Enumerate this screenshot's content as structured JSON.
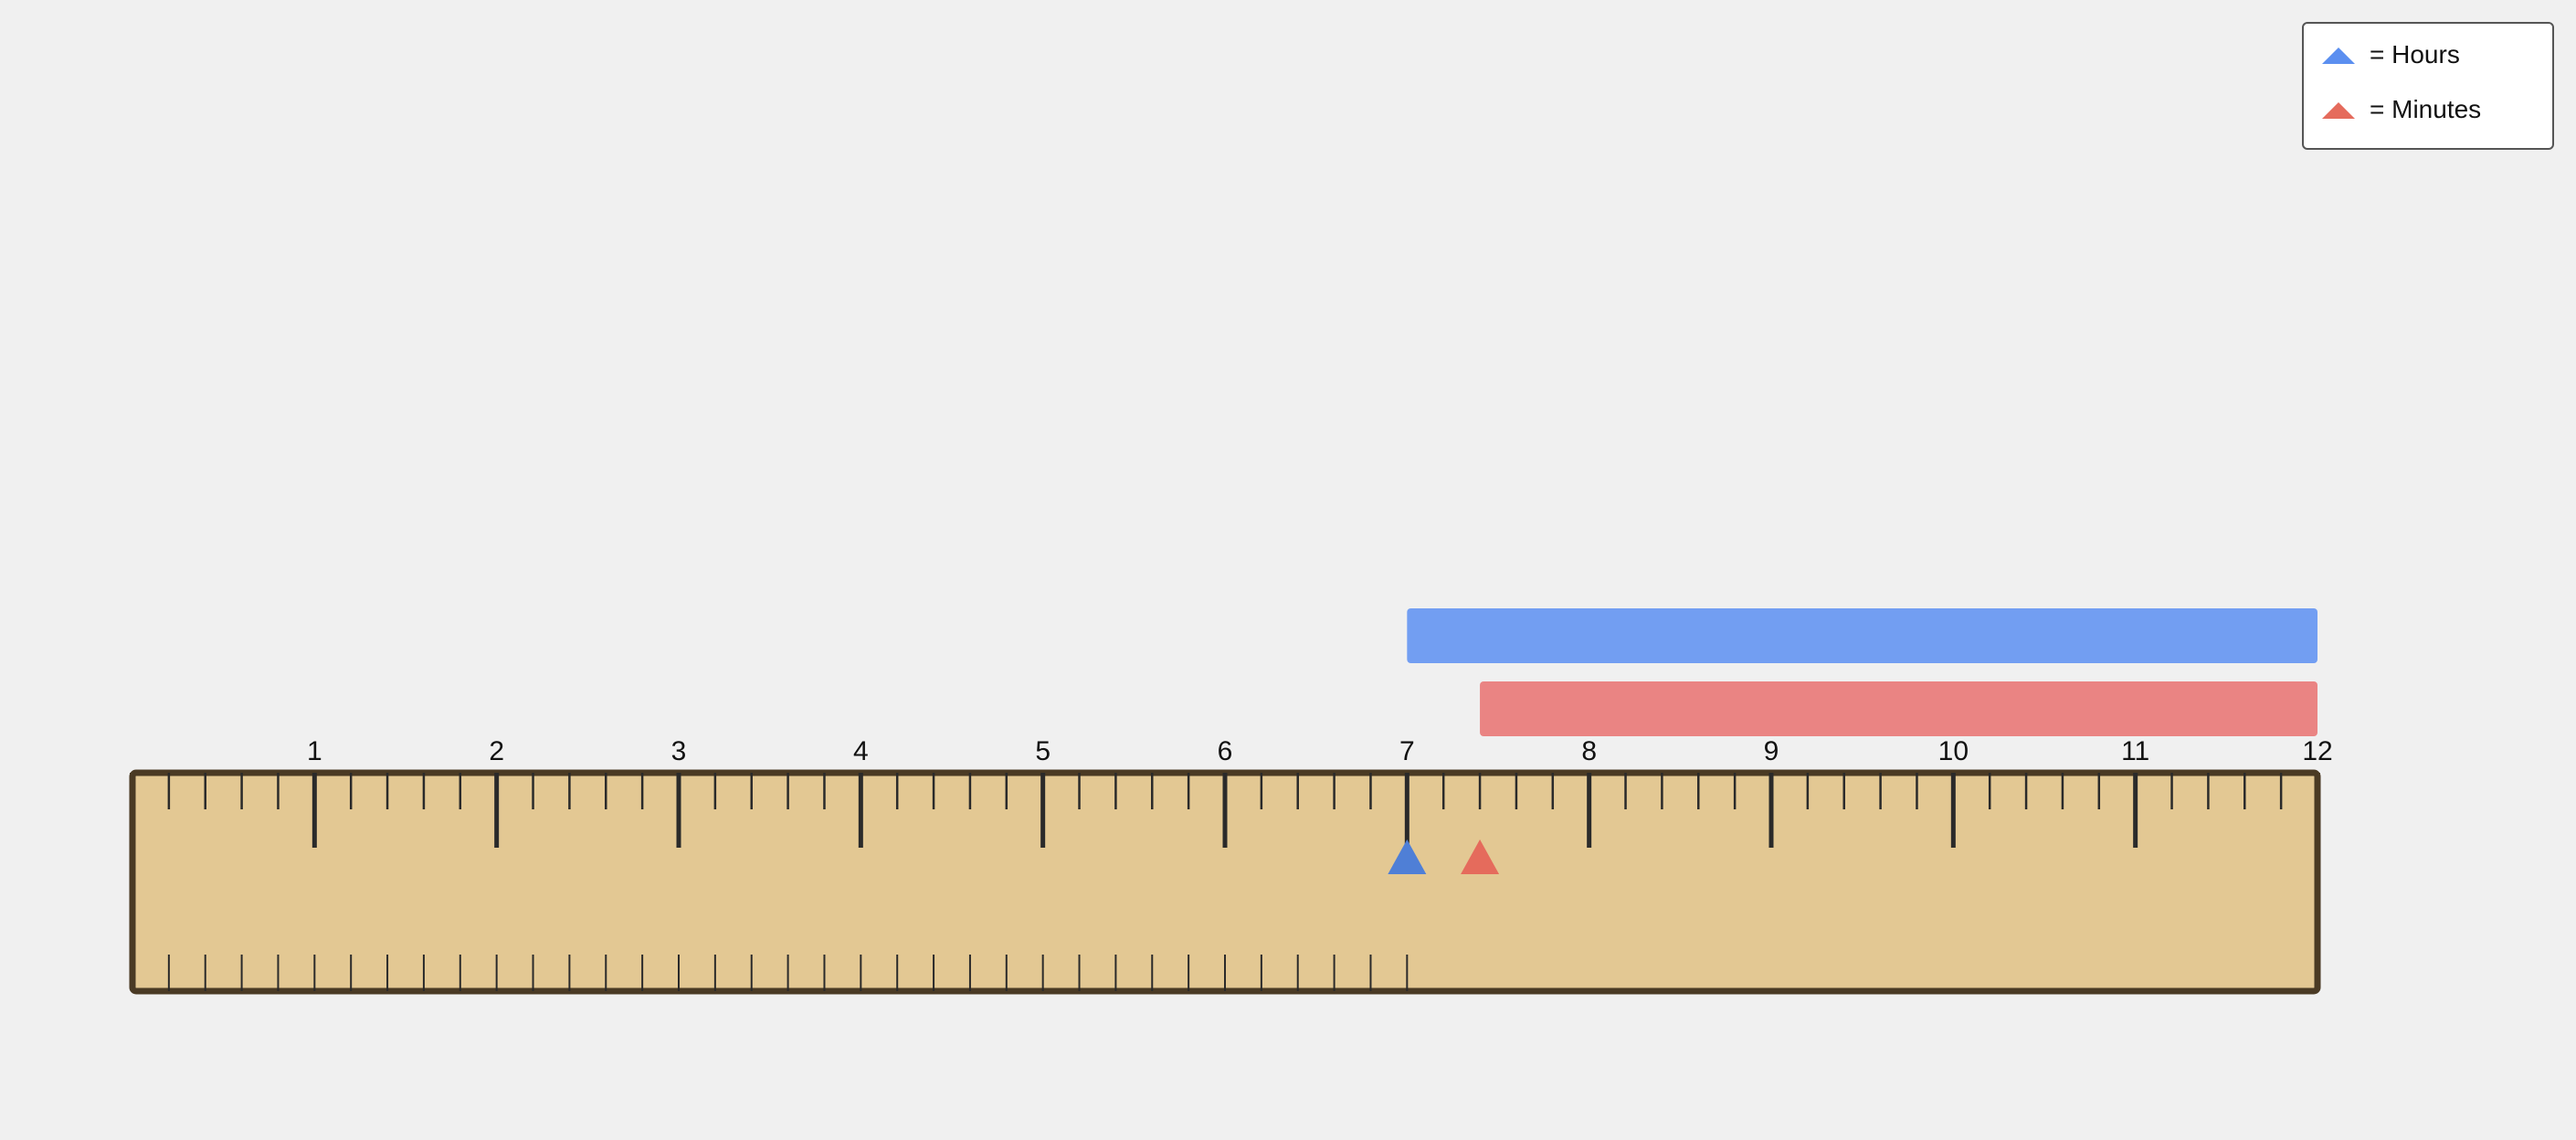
{
  "colors": {
    "background": "#f0f0f0",
    "ruler_fill": "#e3c893",
    "ruler_border": "#4a3a24",
    "tick": "#2a2a2a",
    "hours_bar": "#729ef2",
    "hours_marker": "#4f7fd6",
    "minutes_bar": "#ea8483",
    "minutes_marker": "#e56b5c"
  },
  "ruler": {
    "min": 0,
    "max": 12,
    "major_ticks": [
      "1",
      "2",
      "3",
      "4",
      "5",
      "6",
      "7",
      "8",
      "9",
      "10",
      "11",
      "12"
    ],
    "top_subdivisions": 5,
    "bottom_subdivisions": 5,
    "bottom_scale_end": 7
  },
  "bars": [
    {
      "name": "hours-bar",
      "start": 7,
      "end": 12,
      "color": "#729ef2"
    },
    {
      "name": "minutes-bar",
      "start": 7.4,
      "end": 12,
      "color": "#ea8483"
    }
  ],
  "markers": [
    {
      "name": "hours-marker",
      "value": 7,
      "color": "#4f7fd6"
    },
    {
      "name": "minutes-marker",
      "value": 7.4,
      "color": "#e56b5c"
    }
  ],
  "legend": {
    "items": [
      {
        "label": "= Hours",
        "icon": "blue-triangle-icon",
        "color": "#5b8ff0"
      },
      {
        "label": "= Minutes",
        "icon": "red-triangle-icon",
        "color": "#e56b5c"
      }
    ]
  }
}
